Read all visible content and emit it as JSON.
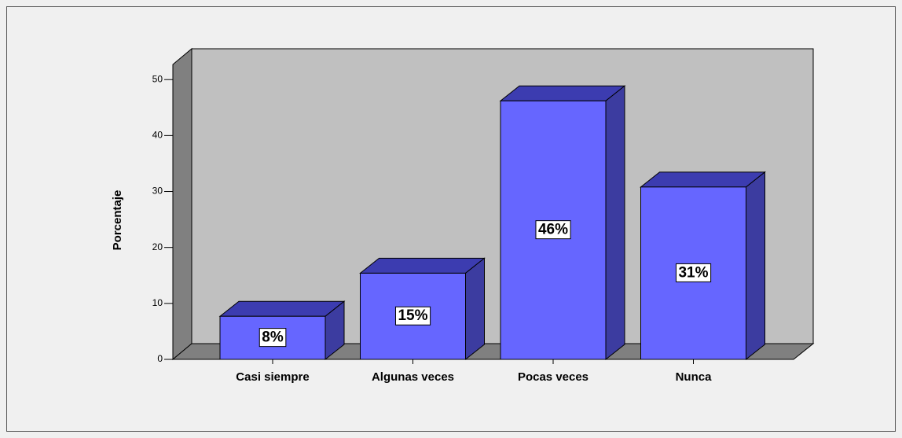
{
  "chart_data": {
    "type": "bar3d",
    "y_label": "Porcentaje",
    "categories": [
      "Casi siempre",
      "Algunas veces",
      "Pocas veces",
      "Nunca"
    ],
    "values": [
      7.7,
      15.4,
      46.2,
      30.8
    ],
    "value_labels": [
      "8%",
      "15%",
      "46%",
      "31%"
    ],
    "color": "#6666ff",
    "ylim": [
      0,
      52.7
    ],
    "yticks": [
      0,
      10,
      20,
      30,
      40,
      50
    ]
  }
}
